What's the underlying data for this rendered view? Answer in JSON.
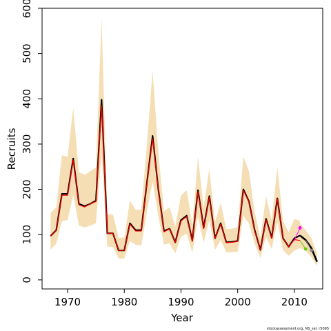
{
  "chart_data": {
    "type": "line",
    "xlabel": "Year",
    "ylabel": "Recruits",
    "xlim": [
      1965.5,
      2015
    ],
    "ylim": [
      -20,
      600
    ],
    "xticks": [
      1970,
      1980,
      1990,
      2000,
      2010
    ],
    "yticks": [
      0,
      100,
      200,
      300,
      400,
      500,
      600
    ],
    "grid": false,
    "colors": {
      "band": "#f5deb3",
      "estimate": "#000000",
      "fit": "#ff0000",
      "retro_magenta": "#ff00ff",
      "retro_green": "#66cc00",
      "retro_gray": "#888888"
    },
    "years": [
      1967,
      1968,
      1969,
      1970,
      1971,
      1972,
      1973,
      1974,
      1975,
      1976,
      1977,
      1978,
      1979,
      1980,
      1981,
      1982,
      1983,
      1984,
      1985,
      1986,
      1987,
      1988,
      1989,
      1990,
      1991,
      1992,
      1993,
      1994,
      1995,
      1996,
      1997,
      1998,
      1999,
      2000,
      2001,
      2002,
      2003,
      2004,
      2005,
      2006,
      2007,
      2008,
      2009,
      2010,
      2011
    ],
    "estimate": [
      97,
      110,
      190,
      190,
      268,
      168,
      163,
      168,
      175,
      398,
      103,
      103,
      65,
      65,
      125,
      110,
      110,
      215,
      318,
      200,
      108,
      113,
      83,
      132,
      142,
      87,
      198,
      115,
      185,
      92,
      125,
      83,
      84,
      86,
      200,
      173,
      110,
      66,
      135,
      93,
      180,
      92,
      73,
      92,
      98
    ],
    "fit": [
      97,
      110,
      187,
      187,
      265,
      166,
      161,
      168,
      173,
      385,
      103,
      103,
      65,
      65,
      123,
      108,
      108,
      213,
      312,
      200,
      106,
      113,
      83,
      130,
      140,
      85,
      195,
      113,
      183,
      92,
      123,
      82,
      83,
      85,
      198,
      172,
      108,
      66,
      133,
      92,
      179,
      92,
      73,
      89,
      87
    ],
    "upper": [
      148,
      160,
      275,
      272,
      380,
      238,
      232,
      240,
      248,
      578,
      145,
      145,
      93,
      93,
      175,
      155,
      155,
      300,
      462,
      282,
      152,
      160,
      118,
      186,
      198,
      122,
      272,
      160,
      246,
      128,
      170,
      112,
      113,
      117,
      272,
      240,
      150,
      93,
      185,
      132,
      250,
      130,
      105,
      135,
      130
    ],
    "lower": [
      67,
      80,
      130,
      132,
      188,
      120,
      116,
      120,
      125,
      278,
      73,
      73,
      47,
      47,
      86,
      78,
      76,
      150,
      218,
      140,
      78,
      81,
      58,
      95,
      102,
      60,
      140,
      82,
      132,
      66,
      88,
      61,
      61,
      62,
      142,
      124,
      80,
      48,
      95,
      68,
      128,
      66,
      53,
      65,
      70
    ],
    "projection_years": [
      2011,
      2012,
      2013,
      2014
    ],
    "projection_estimate": [
      98,
      88,
      70,
      40
    ],
    "projection_upper": [
      125,
      110,
      92,
      58
    ],
    "projection_lower": [
      70,
      65,
      50,
      30
    ],
    "retro_series": [
      {
        "color_key": "retro_magenta",
        "x": [
          2010,
          2011
        ],
        "y": [
          87,
          115
        ]
      },
      {
        "color_key": "retro_green",
        "x": [
          2011,
          2012
        ],
        "y": [
          87,
          68
        ]
      },
      {
        "color_key": "retro_gray",
        "x": [
          2012,
          2013
        ],
        "y": [
          88,
          65
        ]
      }
    ]
  },
  "credit": "stockassessment.org, NS_sel, r5095"
}
